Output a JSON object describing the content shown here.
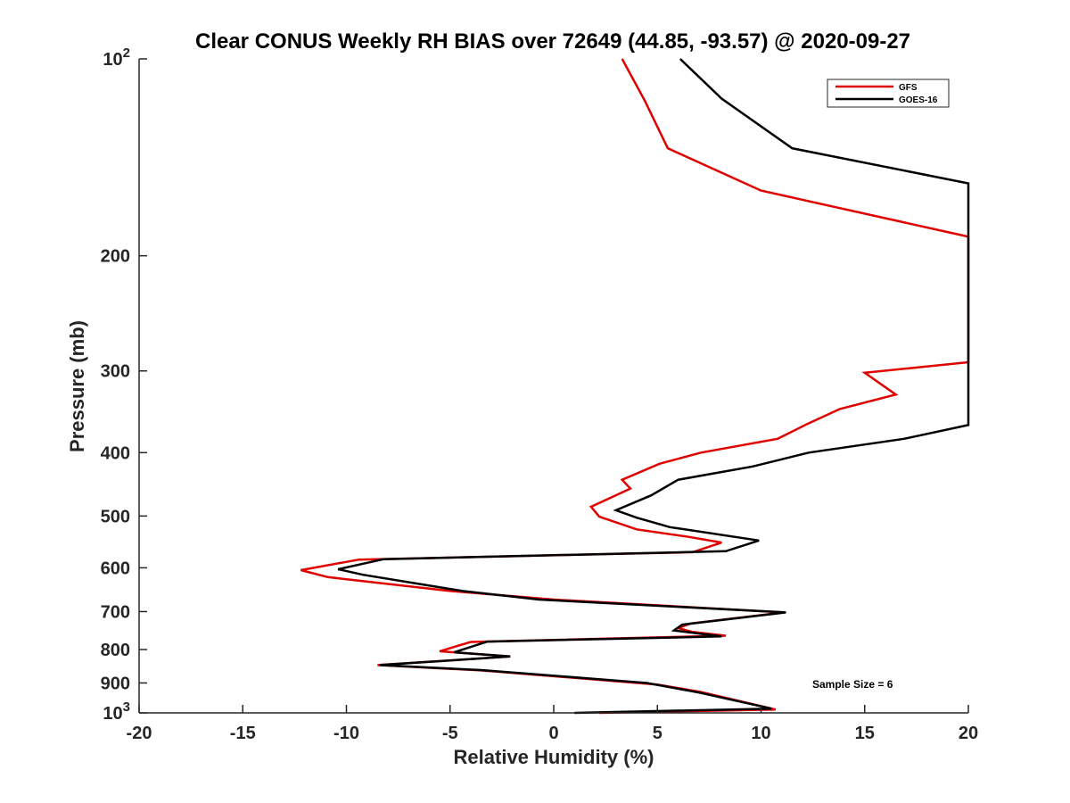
{
  "chart_data": {
    "type": "line",
    "title": "Clear CONUS Weekly RH BIAS over 72649 (44.85, -93.57) @ 2020-09-27",
    "xlabel": "Relative Humidity (%)",
    "ylabel": "Pressure (mb)",
    "xlim": [
      -20,
      20
    ],
    "ylim": [
      100,
      1000
    ],
    "y_scale": "log",
    "y_reversed": true,
    "x_ticks": [
      "-20",
      "-15",
      "-10",
      "-5",
      "0",
      "5",
      "10",
      "15",
      "20"
    ],
    "y_ticks": [
      {
        "value": 100,
        "base": "10",
        "exp": "2"
      },
      {
        "value": 200,
        "label": "200"
      },
      {
        "value": 300,
        "label": "300"
      },
      {
        "value": 400,
        "label": "400"
      },
      {
        "value": 500,
        "label": "500"
      },
      {
        "value": 600,
        "label": "600"
      },
      {
        "value": 700,
        "label": "700"
      },
      {
        "value": 800,
        "label": "800"
      },
      {
        "value": 900,
        "label": "900"
      },
      {
        "value": 1000,
        "base": "10",
        "exp": "3"
      }
    ],
    "legend_position": "top-right",
    "grid": false,
    "annotation": "Sample Size = 6",
    "series": [
      {
        "name": "GFS",
        "color": "#e00000",
        "points": [
          [
            3.3,
            100
          ],
          [
            4.4,
            116
          ],
          [
            5.5,
            137
          ],
          [
            10.0,
            159
          ],
          [
            20.0,
            187
          ],
          [
            20.0,
            291
          ],
          [
            15.0,
            302
          ],
          [
            16.5,
            326
          ],
          [
            13.8,
            343
          ],
          [
            12.2,
            362
          ],
          [
            10.8,
            381
          ],
          [
            7.1,
            400
          ],
          [
            5.1,
            416
          ],
          [
            3.3,
            440
          ],
          [
            3.7,
            454
          ],
          [
            1.8,
            484
          ],
          [
            2.2,
            501
          ],
          [
            4.0,
            524
          ],
          [
            6.5,
            538
          ],
          [
            8.1,
            549
          ],
          [
            6.7,
            568
          ],
          [
            -9.4,
            583
          ],
          [
            -12.2,
            605
          ],
          [
            -10.9,
            620
          ],
          [
            -5.0,
            651
          ],
          [
            0.0,
            671
          ],
          [
            11.1,
            702
          ],
          [
            6.6,
            730
          ],
          [
            6.0,
            742
          ],
          [
            6.7,
            752
          ],
          [
            8.3,
            762
          ],
          [
            -4.0,
            779
          ],
          [
            -5.5,
            805
          ],
          [
            -2.1,
            820
          ],
          [
            -8.5,
            845
          ],
          [
            -3.5,
            861
          ],
          [
            5.0,
            905
          ],
          [
            7.1,
            929
          ],
          [
            10.7,
            988
          ],
          [
            2.2,
            1000
          ]
        ]
      },
      {
        "name": "GOES-16",
        "color": "#000000",
        "points": [
          [
            6.1,
            100
          ],
          [
            8.1,
            115
          ],
          [
            11.5,
            137
          ],
          [
            20.0,
            155
          ],
          [
            20.0,
            363
          ],
          [
            16.9,
            381
          ],
          [
            12.3,
            400
          ],
          [
            9.6,
            420
          ],
          [
            6.0,
            440
          ],
          [
            4.7,
            465
          ],
          [
            3.0,
            490
          ],
          [
            4.0,
            503
          ],
          [
            5.6,
            520
          ],
          [
            9.9,
            545
          ],
          [
            8.3,
            566
          ],
          [
            -8.2,
            582
          ],
          [
            -10.4,
            603
          ],
          [
            -9.2,
            615
          ],
          [
            -4.4,
            651
          ],
          [
            -0.7,
            671
          ],
          [
            11.2,
            702
          ],
          [
            6.2,
            733
          ],
          [
            5.8,
            748
          ],
          [
            6.8,
            755
          ],
          [
            8.1,
            764
          ],
          [
            -3.2,
            778
          ],
          [
            -4.8,
            808
          ],
          [
            -2.1,
            820
          ],
          [
            -8.4,
            845
          ],
          [
            -3.5,
            860
          ],
          [
            4.5,
            900
          ],
          [
            7.0,
            931
          ],
          [
            10.5,
            985
          ],
          [
            1.0,
            1000
          ]
        ]
      }
    ]
  }
}
